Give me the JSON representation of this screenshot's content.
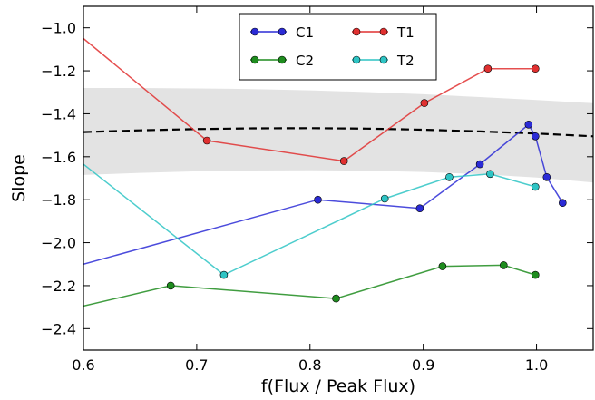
{
  "chart_data": {
    "type": "line",
    "xlabel": "f(Flux / Peak Flux)",
    "ylabel": "Slope",
    "xlim": [
      0.6,
      1.05
    ],
    "ylim": [
      -2.5,
      -0.9
    ],
    "xticks": [
      0.6,
      0.7,
      0.8,
      0.9,
      1.0
    ],
    "yticks": [
      -2.4,
      -2.2,
      -2.0,
      -1.8,
      -1.6,
      -1.4,
      -1.2,
      -1.0
    ],
    "xtick_labels": [
      "0.6",
      "0.7",
      "0.8",
      "0.9",
      "1.0"
    ],
    "ytick_labels": [
      "−2.4",
      "−2.2",
      "−2.0",
      "−1.8",
      "−1.6",
      "−1.4",
      "−1.2",
      "−1.0"
    ],
    "grid": false,
    "legend_position": "top-center",
    "series": [
      {
        "name": "C1",
        "color": "#2b2bd6",
        "x": [
          0.6,
          0.807,
          0.897,
          0.95,
          0.993,
          0.999,
          1.009,
          1.023
        ],
        "y": [
          -2.1,
          -1.8,
          -1.84,
          -1.635,
          -1.45,
          -1.505,
          -1.695,
          -1.815
        ]
      },
      {
        "name": "C2",
        "color": "#1e8c1e",
        "x": [
          0.6,
          0.677,
          0.823,
          0.917,
          0.971,
          0.999
        ],
        "y": [
          -2.295,
          -2.2,
          -2.26,
          -2.11,
          -2.105,
          -2.15
        ]
      },
      {
        "name": "T1",
        "color": "#e03030",
        "x": [
          0.6,
          0.709,
          0.83,
          0.901,
          0.957,
          0.999
        ],
        "y": [
          -1.05,
          -1.525,
          -1.62,
          -1.35,
          -1.19,
          -1.19
        ]
      },
      {
        "name": "T2",
        "color": "#2ec4c4",
        "x": [
          0.6,
          0.724,
          0.866,
          0.923,
          0.959,
          0.999
        ],
        "y": [
          -1.635,
          -2.15,
          -1.795,
          -1.695,
          -1.68,
          -1.74
        ]
      }
    ],
    "fit": {
      "style": "dashed",
      "color": "#000000",
      "x": [
        0.6,
        0.65,
        0.7,
        0.75,
        0.8,
        0.85,
        0.9,
        0.95,
        1.0,
        1.05
      ],
      "y": [
        -1.485,
        -1.477,
        -1.471,
        -1.468,
        -1.467,
        -1.469,
        -1.474,
        -1.482,
        -1.492,
        -1.505
      ],
      "band_color": "#e3e3e3",
      "band_upper": [
        -1.28,
        -1.28,
        -1.282,
        -1.285,
        -1.291,
        -1.299,
        -1.309,
        -1.322,
        -1.336,
        -1.351
      ],
      "band_lower": [
        -1.685,
        -1.675,
        -1.668,
        -1.664,
        -1.663,
        -1.665,
        -1.671,
        -1.681,
        -1.697,
        -1.72
      ]
    }
  }
}
